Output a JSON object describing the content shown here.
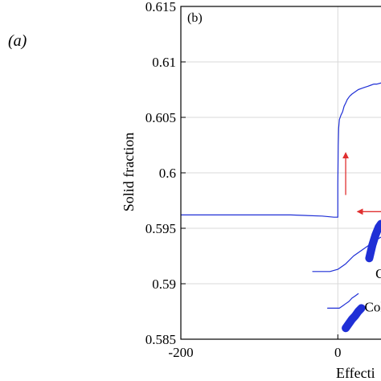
{
  "outer_label": "(a)",
  "chart_data": {
    "type": "line",
    "panel_label": "(b)",
    "ylabel": "Solid fraction",
    "xlabel": "Effecti",
    "xlim": [
      -200,
      55
    ],
    "ylim": [
      0.585,
      0.615
    ],
    "xticks": [
      -200,
      0
    ],
    "xtick_labels": [
      "-200",
      "0"
    ],
    "yticks": [
      0.585,
      0.59,
      0.595,
      0.6,
      0.605,
      0.61,
      0.615
    ],
    "ytick_labels": [
      "0.585",
      "0.59",
      "0.595",
      "0.6",
      "0.605",
      "0.61",
      "0.615"
    ],
    "grid": true,
    "colors": {
      "series": "#1f2fd6",
      "arrow": "#e03030",
      "grid": "#d9d9d9"
    },
    "series": [
      {
        "style": "thin",
        "x": [
          -200,
          -120,
          -60,
          -20,
          -5,
          0,
          0,
          0.5,
          1,
          2,
          4,
          6,
          8,
          10,
          12,
          15,
          18,
          22,
          26,
          30,
          34,
          38,
          42,
          46,
          50,
          55
        ],
        "y": [
          0.5962,
          0.5962,
          0.5962,
          0.5961,
          0.596,
          0.596,
          0.599,
          0.6025,
          0.604,
          0.6048,
          0.6052,
          0.6055,
          0.606,
          0.6063,
          0.6066,
          0.6069,
          0.6071,
          0.6073,
          0.6075,
          0.6076,
          0.6077,
          0.6078,
          0.6079,
          0.608,
          0.608,
          0.6081
        ]
      },
      {
        "style": "thin",
        "x": [
          -32,
          -10,
          0,
          10,
          20,
          30,
          40,
          50,
          55
        ],
        "y": [
          0.5911,
          0.5911,
          0.5913,
          0.5918,
          0.5925,
          0.593,
          0.5935,
          0.594,
          0.5942
        ]
      },
      {
        "style": "thin",
        "x": [
          -13,
          -2,
          2,
          6,
          10,
          14,
          18,
          22,
          26
        ],
        "y": [
          0.5878,
          0.5878,
          0.5878,
          0.588,
          0.5882,
          0.5884,
          0.5887,
          0.5889,
          0.5891
        ]
      },
      {
        "style": "thick",
        "x": [
          40,
          44,
          48,
          52,
          55
        ],
        "y": [
          0.5923,
          0.5935,
          0.5944,
          0.5951,
          0.5954
        ]
      },
      {
        "style": "thick",
        "x": [
          10,
          14,
          18,
          22,
          26,
          30
        ],
        "y": [
          0.586,
          0.5864,
          0.5868,
          0.5871,
          0.5875,
          0.5878
        ]
      }
    ],
    "arrows": [
      {
        "x": [
          10,
          10
        ],
        "y": [
          0.598,
          0.6018
        ]
      },
      {
        "x": [
          55,
          25
        ],
        "y": [
          0.5965,
          0.5965
        ]
      }
    ],
    "annotations": [
      {
        "text": "C",
        "x": 48,
        "y": 0.5905
      },
      {
        "text": "Col",
        "x": 34,
        "y": 0.5875
      }
    ]
  }
}
